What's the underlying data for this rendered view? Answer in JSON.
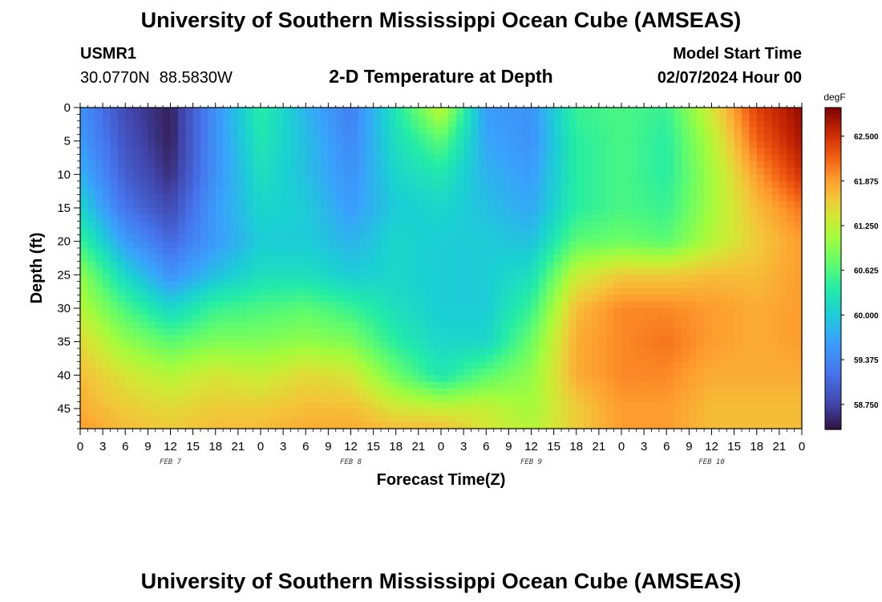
{
  "header": {
    "title": "University of Southern Mississippi Ocean Cube (AMSEAS)",
    "station": "USMR1",
    "lat": "30.0770N",
    "lon": "88.5830W",
    "subtitle": "2-D Temperature at Depth",
    "model_start_label": "Model Start Time",
    "model_start_value": "02/07/2024 Hour 00"
  },
  "footer": {
    "title": "University of Southern Mississippi Ocean Cube (AMSEAS)"
  },
  "chart_data": {
    "type": "heatmap",
    "title": "2-D Temperature at Depth",
    "xlabel": "Forecast Time(Z)",
    "ylabel": "Depth (ft)",
    "x_range_hours": [
      0,
      96
    ],
    "x_tick_labels": [
      "0",
      "3",
      "6",
      "9",
      "12",
      "15",
      "18",
      "21",
      "0",
      "3",
      "6",
      "9",
      "12",
      "15",
      "18",
      "21",
      "0",
      "3",
      "6",
      "9",
      "12",
      "15",
      "18",
      "21",
      "0",
      "3",
      "6",
      "9",
      "12",
      "15",
      "18",
      "21",
      "0"
    ],
    "day_labels": [
      {
        "label": "FEB 7",
        "hour": 12
      },
      {
        "label": "FEB 8",
        "hour": 36
      },
      {
        "label": "FEB 9",
        "hour": 60
      },
      {
        "label": "FEB 10",
        "hour": 84
      }
    ],
    "y_range_ft": [
      0,
      48
    ],
    "y_tick_labels": [
      "0",
      "5",
      "10",
      "15",
      "20",
      "25",
      "30",
      "35",
      "40",
      "45"
    ],
    "colorbar": {
      "unit": "degF",
      "range": [
        58.4,
        62.9
      ],
      "tick_labels": [
        "62.500",
        "61.875",
        "61.250",
        "60.625",
        "60.000",
        "59.375",
        "58.750"
      ]
    },
    "depths_ft": [
      0,
      5,
      10,
      15,
      20,
      25,
      30,
      35,
      40,
      45,
      48
    ],
    "hours": [
      0,
      6,
      12,
      18,
      24,
      30,
      36,
      42,
      48,
      54,
      60,
      66,
      72,
      78,
      84,
      90,
      96
    ],
    "values": [
      [
        59.5,
        58.8,
        58.5,
        59.5,
        60.4,
        59.8,
        59.3,
        60.3,
        61.3,
        59.6,
        59.5,
        60.5,
        60.6,
        60.5,
        61.4,
        62.4,
        62.8
      ],
      [
        59.6,
        58.9,
        58.5,
        59.5,
        60.3,
        59.9,
        59.4,
        60.2,
        60.7,
        59.7,
        59.5,
        60.4,
        60.6,
        60.4,
        61.2,
        62.2,
        62.7
      ],
      [
        59.8,
        59.0,
        58.6,
        59.5,
        60.2,
        59.9,
        59.5,
        60.1,
        60.3,
        59.8,
        59.6,
        60.4,
        60.6,
        60.4,
        61.1,
        61.9,
        62.5
      ],
      [
        60.1,
        59.2,
        58.8,
        59.6,
        60.1,
        60.0,
        59.6,
        60.0,
        60.1,
        59.9,
        59.7,
        60.4,
        60.6,
        60.5,
        61.1,
        61.7,
        62.1
      ],
      [
        60.5,
        59.6,
        59.1,
        59.6,
        60.0,
        60.0,
        59.8,
        60.1,
        60.0,
        60.0,
        59.9,
        60.7,
        60.8,
        60.7,
        61.2,
        61.6,
        61.9
      ],
      [
        61.0,
        60.1,
        59.5,
        59.9,
        60.2,
        60.2,
        60.0,
        60.1,
        60.0,
        60.0,
        60.2,
        61.3,
        61.6,
        61.6,
        61.7,
        61.7,
        61.9
      ],
      [
        61.2,
        60.6,
        60.1,
        60.5,
        60.6,
        60.7,
        60.5,
        60.2,
        60.0,
        60.0,
        60.5,
        61.7,
        62.0,
        62.0,
        61.9,
        61.8,
        61.9
      ],
      [
        61.5,
        61.0,
        60.7,
        60.9,
        60.9,
        61.0,
        60.9,
        60.4,
        60.1,
        60.1,
        60.8,
        61.8,
        62.0,
        62.1,
        61.9,
        61.8,
        61.9
      ],
      [
        61.7,
        61.4,
        61.2,
        61.4,
        61.3,
        61.5,
        61.4,
        60.8,
        60.3,
        60.7,
        61.0,
        61.8,
        62.0,
        62.0,
        61.8,
        61.8,
        61.8
      ],
      [
        61.8,
        61.6,
        61.5,
        61.6,
        61.6,
        61.7,
        61.7,
        61.4,
        61.3,
        61.3,
        61.1,
        61.6,
        61.9,
        61.9,
        61.7,
        61.7,
        61.7
      ],
      [
        61.9,
        61.7,
        61.6,
        61.7,
        61.7,
        61.8,
        61.8,
        61.7,
        61.7,
        61.4,
        61.2,
        61.6,
        61.9,
        61.9,
        61.7,
        61.7,
        61.7
      ]
    ]
  }
}
